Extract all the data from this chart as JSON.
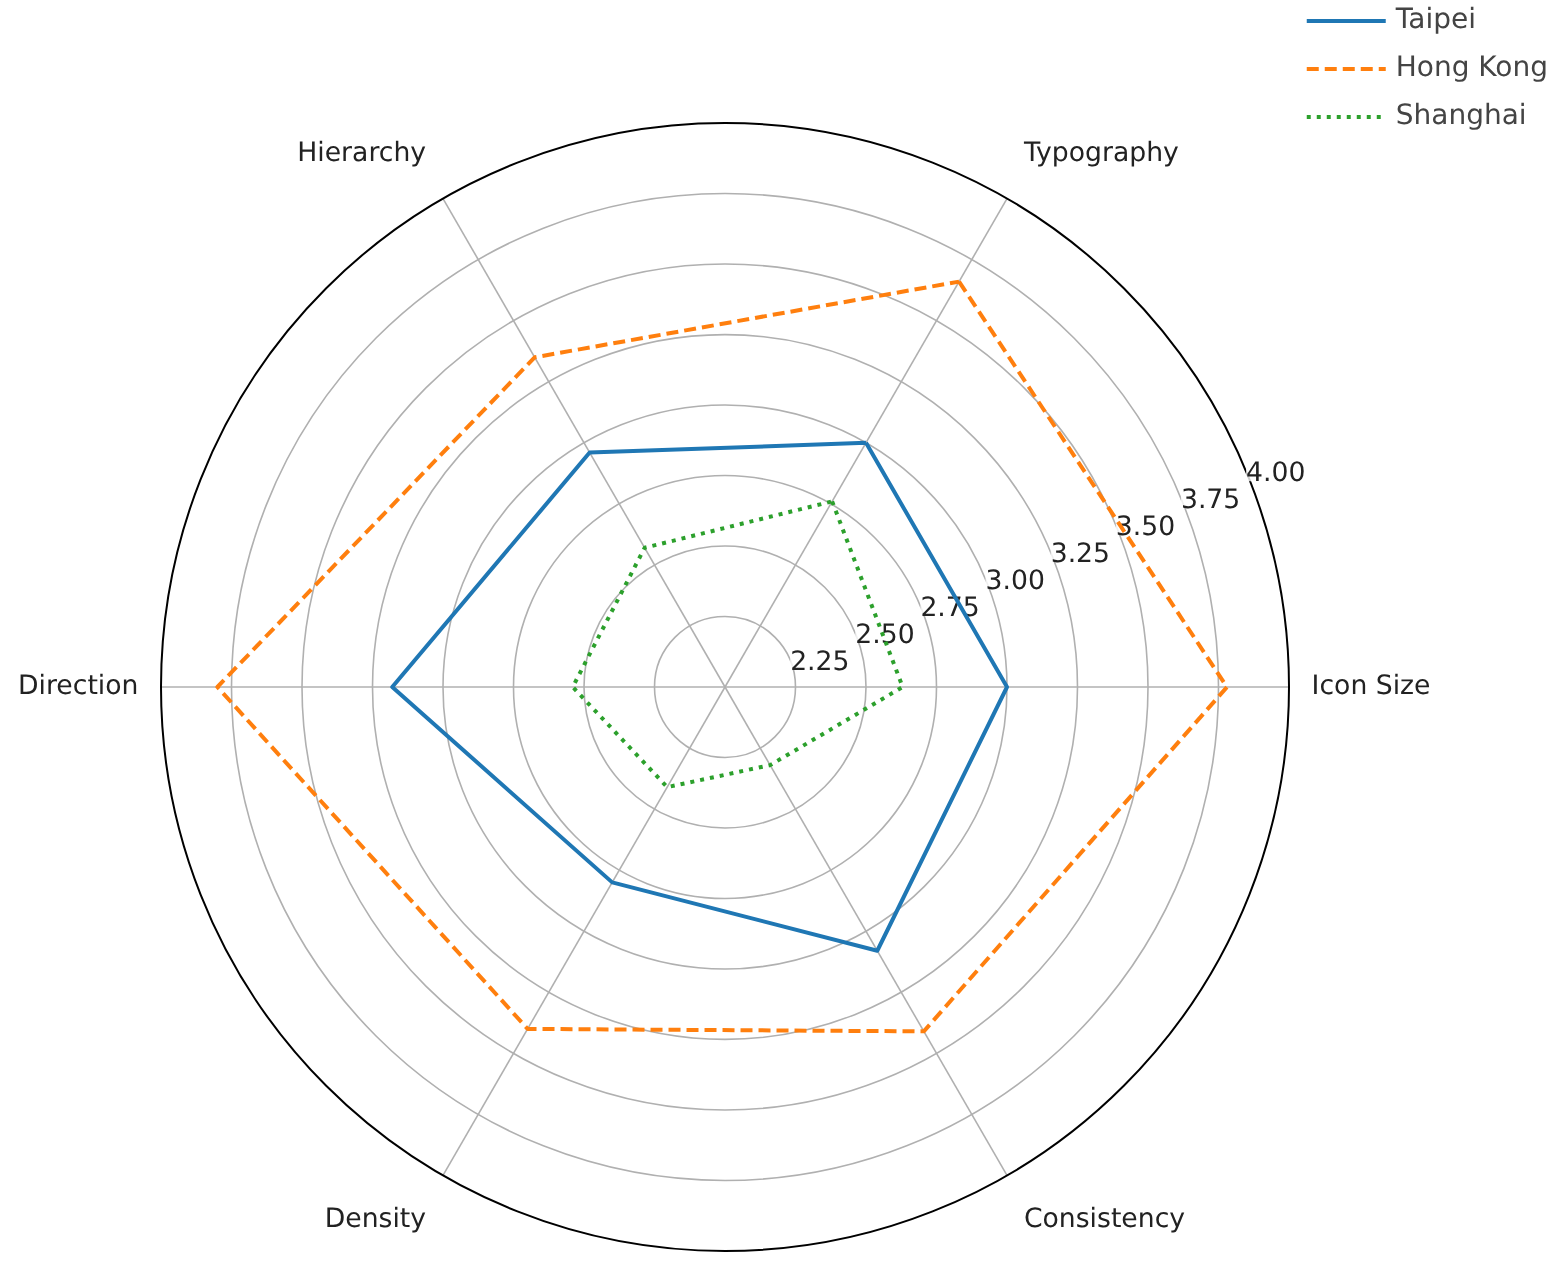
{
  "chart_data": {
    "type": "radar",
    "categories": [
      "Typography",
      "Icon Size",
      "Consistency",
      "Density",
      "Direction",
      "Hierarchy"
    ],
    "series": [
      {
        "name": "Taipei",
        "color": "#1f77b4",
        "line_style": "solid",
        "values": [
          3.0,
          3.0,
          3.08,
          2.8,
          3.18,
          2.96
        ]
      },
      {
        "name": "Hong Kong",
        "color": "#ff7f0e",
        "line_style": "dashed",
        "values": [
          3.66,
          3.78,
          3.41,
          3.4,
          3.8,
          3.35
        ]
      },
      {
        "name": "Shanghai",
        "color": "#2ca02c",
        "line_style": "dotted",
        "values": [
          2.76,
          2.63,
          2.32,
          2.41,
          2.54,
          2.57
        ]
      }
    ],
    "ylim": [
      2.0,
      4.0
    ],
    "yticks": [
      2.25,
      {
        "value": 2.5,
        "label": "2.50"
      },
      2.75,
      {
        "value": 3.0,
        "label": "3.00"
      },
      3.25,
      {
        "value": 3.5,
        "label": "3.50"
      },
      3.75,
      {
        "value": 4.0,
        "label": "4.00"
      }
    ],
    "grid": true,
    "legend": "top right",
    "marker": "none"
  }
}
